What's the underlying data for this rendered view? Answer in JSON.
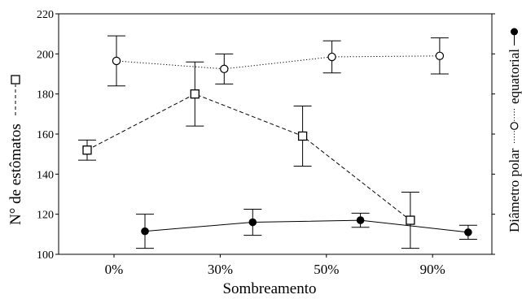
{
  "chart_data": {
    "type": "line",
    "categories": [
      "0%",
      "30%",
      "50%",
      "90%"
    ],
    "xlabel": "Sombreamento",
    "ylabel": "N° de estômatos",
    "ylim": [
      100,
      220
    ],
    "yticks": [
      100,
      120,
      140,
      160,
      180,
      200,
      220
    ],
    "grid": false,
    "error_bars": true,
    "series": [
      {
        "marker": "open-square",
        "line_style": "dashed",
        "values": [
          152,
          180,
          159,
          117
        ],
        "errors": [
          5,
          16,
          15,
          14
        ]
      },
      {
        "name": "Diâmetro polar",
        "marker": "open-circle",
        "line_style": "dotted",
        "values": [
          196.5,
          192.5,
          198.5,
          199
        ],
        "errors": [
          12.5,
          7.5,
          8,
          9
        ]
      },
      {
        "name": "equatorial",
        "marker": "filled-circle",
        "line_style": "solid",
        "values": [
          111.5,
          116,
          117,
          111
        ],
        "errors": [
          8.5,
          6.5,
          3.5,
          3.5
        ]
      }
    ],
    "colors": {
      "ink": "#000000",
      "background": "#ffffff"
    }
  }
}
